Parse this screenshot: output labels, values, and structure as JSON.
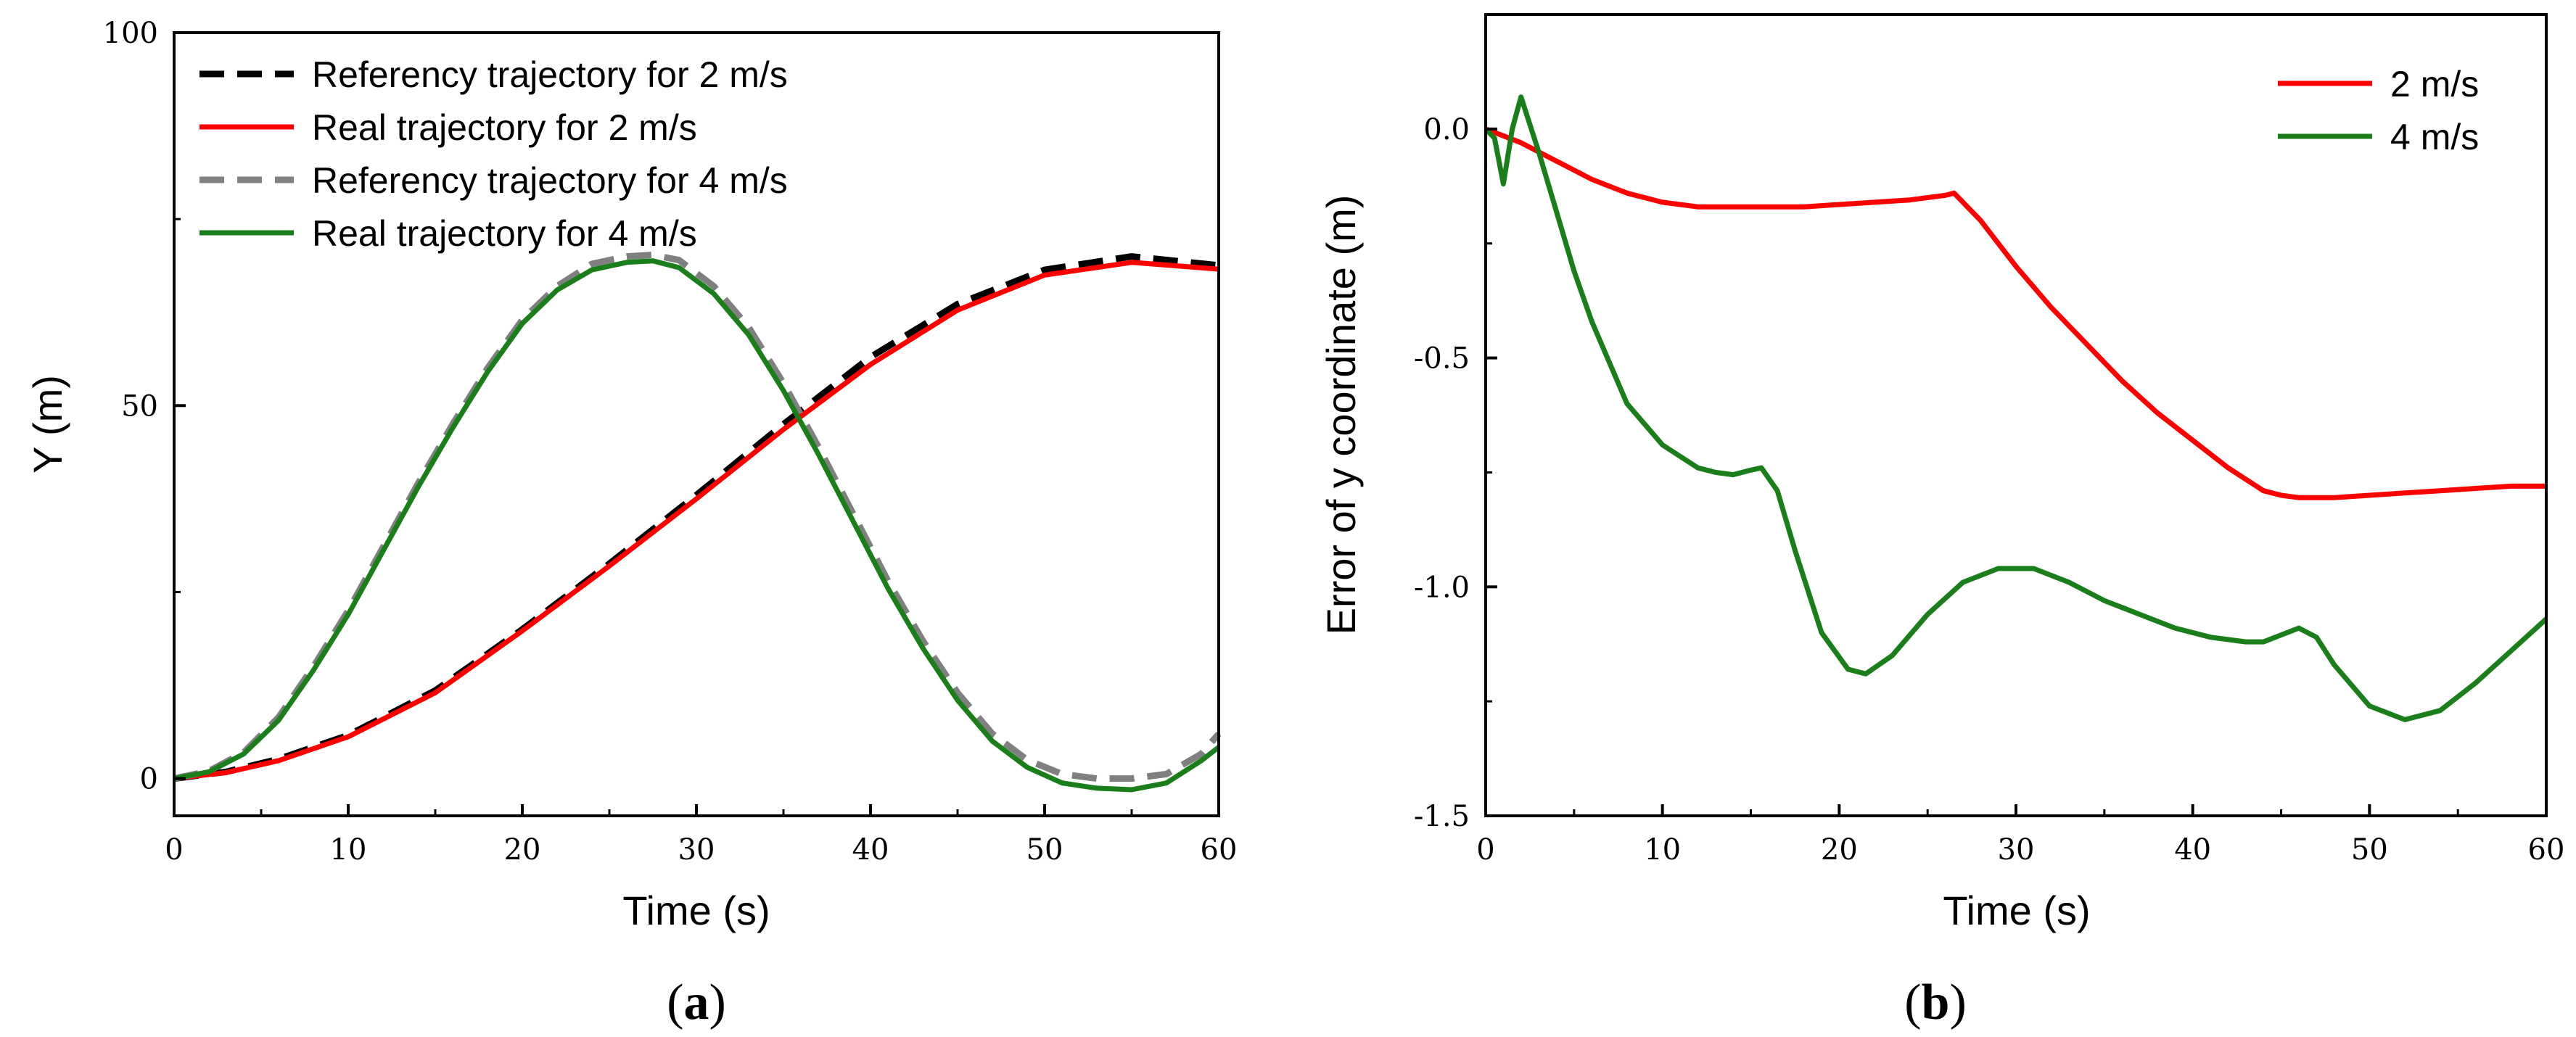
{
  "chart_data": [
    {
      "type": "line",
      "panel_label": "a",
      "xlabel": "Time (s)",
      "ylabel": "Y (m)",
      "xlim": [
        0,
        60
      ],
      "ylim": [
        -5,
        100
      ],
      "xticks": [
        "0",
        "10",
        "20",
        "30",
        "40",
        "50",
        "60"
      ],
      "yticks": [
        "0",
        "50",
        "100"
      ],
      "grid": false,
      "legend_position": "top-left",
      "series": [
        {
          "name": "Referency trajectory for 2 m/s",
          "color": "#000000",
          "style": "dashed",
          "x": [
            0,
            3,
            6,
            10,
            15,
            20,
            25,
            30,
            35,
            40,
            45,
            50,
            55,
            60
          ],
          "y": [
            0,
            0.9,
            2.6,
            5.8,
            11.8,
            20.0,
            28.8,
            38.0,
            47.5,
            56.5,
            63.6,
            68.2,
            70.0,
            68.8
          ]
        },
        {
          "name": "Real trajectory for 2 m/s",
          "color": "#ff0000",
          "style": "solid",
          "x": [
            0,
            3,
            6,
            10,
            15,
            20,
            25,
            30,
            35,
            40,
            45,
            50,
            55,
            60
          ],
          "y": [
            0,
            0.8,
            2.4,
            5.6,
            11.5,
            19.8,
            28.5,
            37.5,
            46.8,
            55.5,
            62.8,
            67.5,
            69.2,
            68.3
          ]
        },
        {
          "name": "Referency trajectory for 4 m/s",
          "color": "#808080",
          "style": "dashed",
          "x": [
            0,
            2,
            4,
            6,
            8,
            10,
            12,
            14,
            16,
            18,
            20,
            22,
            24,
            26,
            27.5,
            29,
            31,
            33,
            35,
            37,
            39,
            41,
            43,
            45,
            47,
            49,
            51,
            53,
            55,
            57,
            59,
            60
          ],
          "y": [
            0,
            1.0,
            3.5,
            8.2,
            15.0,
            22.5,
            31.0,
            39.5,
            47.5,
            55.0,
            61.5,
            66.0,
            69.0,
            70.0,
            70.2,
            69.5,
            66.0,
            60.5,
            53.0,
            44.5,
            35.5,
            26.5,
            18.5,
            11.5,
            6.0,
            2.5,
            0.6,
            0.0,
            0.0,
            0.6,
            3.3,
            6.0
          ]
        },
        {
          "name": "Real trajectory for 4 m/s",
          "color": "#1a7f1a",
          "style": "solid",
          "x": [
            0,
            2,
            4,
            6,
            8,
            10,
            12,
            14,
            16,
            18,
            20,
            22,
            24,
            26,
            27.5,
            29,
            31,
            33,
            35,
            37,
            39,
            41,
            43,
            45,
            47,
            49,
            51,
            53,
            55,
            57,
            59,
            60
          ],
          "y": [
            0,
            0.9,
            3.3,
            7.8,
            14.5,
            22.0,
            30.5,
            39.0,
            47.0,
            54.5,
            61.0,
            65.5,
            68.2,
            69.2,
            69.4,
            68.5,
            65.0,
            59.5,
            52.0,
            43.5,
            34.5,
            25.5,
            17.5,
            10.5,
            5.0,
            1.5,
            -0.6,
            -1.3,
            -1.5,
            -0.6,
            2.4,
            4.2
          ]
        }
      ]
    },
    {
      "type": "line",
      "panel_label": "b",
      "xlabel": "Time (s)",
      "ylabel": "Error of y coordinate (m)",
      "xlim": [
        0,
        60
      ],
      "ylim": [
        -1.5,
        0.25
      ],
      "xticks": [
        "0",
        "10",
        "20",
        "30",
        "40",
        "50",
        "60"
      ],
      "yticks": [
        "0.0",
        "-0.5",
        "-1.0",
        "-1.5"
      ],
      "grid": false,
      "legend_position": "top-right",
      "series": [
        {
          "name": "2 m/s",
          "color": "#ff0000",
          "style": "solid",
          "x": [
            0,
            2,
            4,
            6,
            8,
            10,
            12,
            14,
            16,
            18,
            20,
            22,
            24,
            26,
            26.5,
            28,
            30,
            32,
            34,
            36,
            38,
            40,
            42,
            44,
            45,
            46,
            48,
            50,
            52,
            54,
            56,
            58,
            60
          ],
          "y": [
            0,
            -0.03,
            -0.07,
            -0.11,
            -0.14,
            -0.16,
            -0.17,
            -0.17,
            -0.17,
            -0.17,
            -0.165,
            -0.16,
            -0.155,
            -0.145,
            -0.14,
            -0.2,
            -0.3,
            -0.39,
            -0.47,
            -0.55,
            -0.62,
            -0.68,
            -0.74,
            -0.79,
            -0.8,
            -0.805,
            -0.805,
            -0.8,
            -0.795,
            -0.79,
            -0.785,
            -0.78,
            -0.78
          ]
        },
        {
          "name": "4 m/s",
          "color": "#1a7f1a",
          "style": "solid",
          "x": [
            0,
            0.5,
            1,
            1.5,
            2,
            3,
            4,
            5,
            6,
            8,
            10,
            12,
            13,
            14,
            15,
            15.6,
            16.5,
            17.5,
            19,
            20.5,
            21.5,
            23,
            25,
            27,
            29,
            31,
            33,
            35,
            37,
            39,
            41,
            43,
            44,
            46,
            47,
            48,
            50,
            52,
            54,
            56,
            58,
            60
          ],
          "y": [
            0,
            -0.02,
            -0.12,
            0.0,
            0.07,
            -0.05,
            -0.18,
            -0.31,
            -0.42,
            -0.6,
            -0.69,
            -0.74,
            -0.75,
            -0.755,
            -0.745,
            -0.74,
            -0.79,
            -0.92,
            -1.1,
            -1.18,
            -1.19,
            -1.15,
            -1.06,
            -0.99,
            -0.96,
            -0.96,
            -0.99,
            -1.03,
            -1.06,
            -1.09,
            -1.11,
            -1.12,
            -1.12,
            -1.09,
            -1.11,
            -1.17,
            -1.26,
            -1.29,
            -1.27,
            -1.21,
            -1.14,
            -1.07
          ]
        }
      ]
    }
  ]
}
